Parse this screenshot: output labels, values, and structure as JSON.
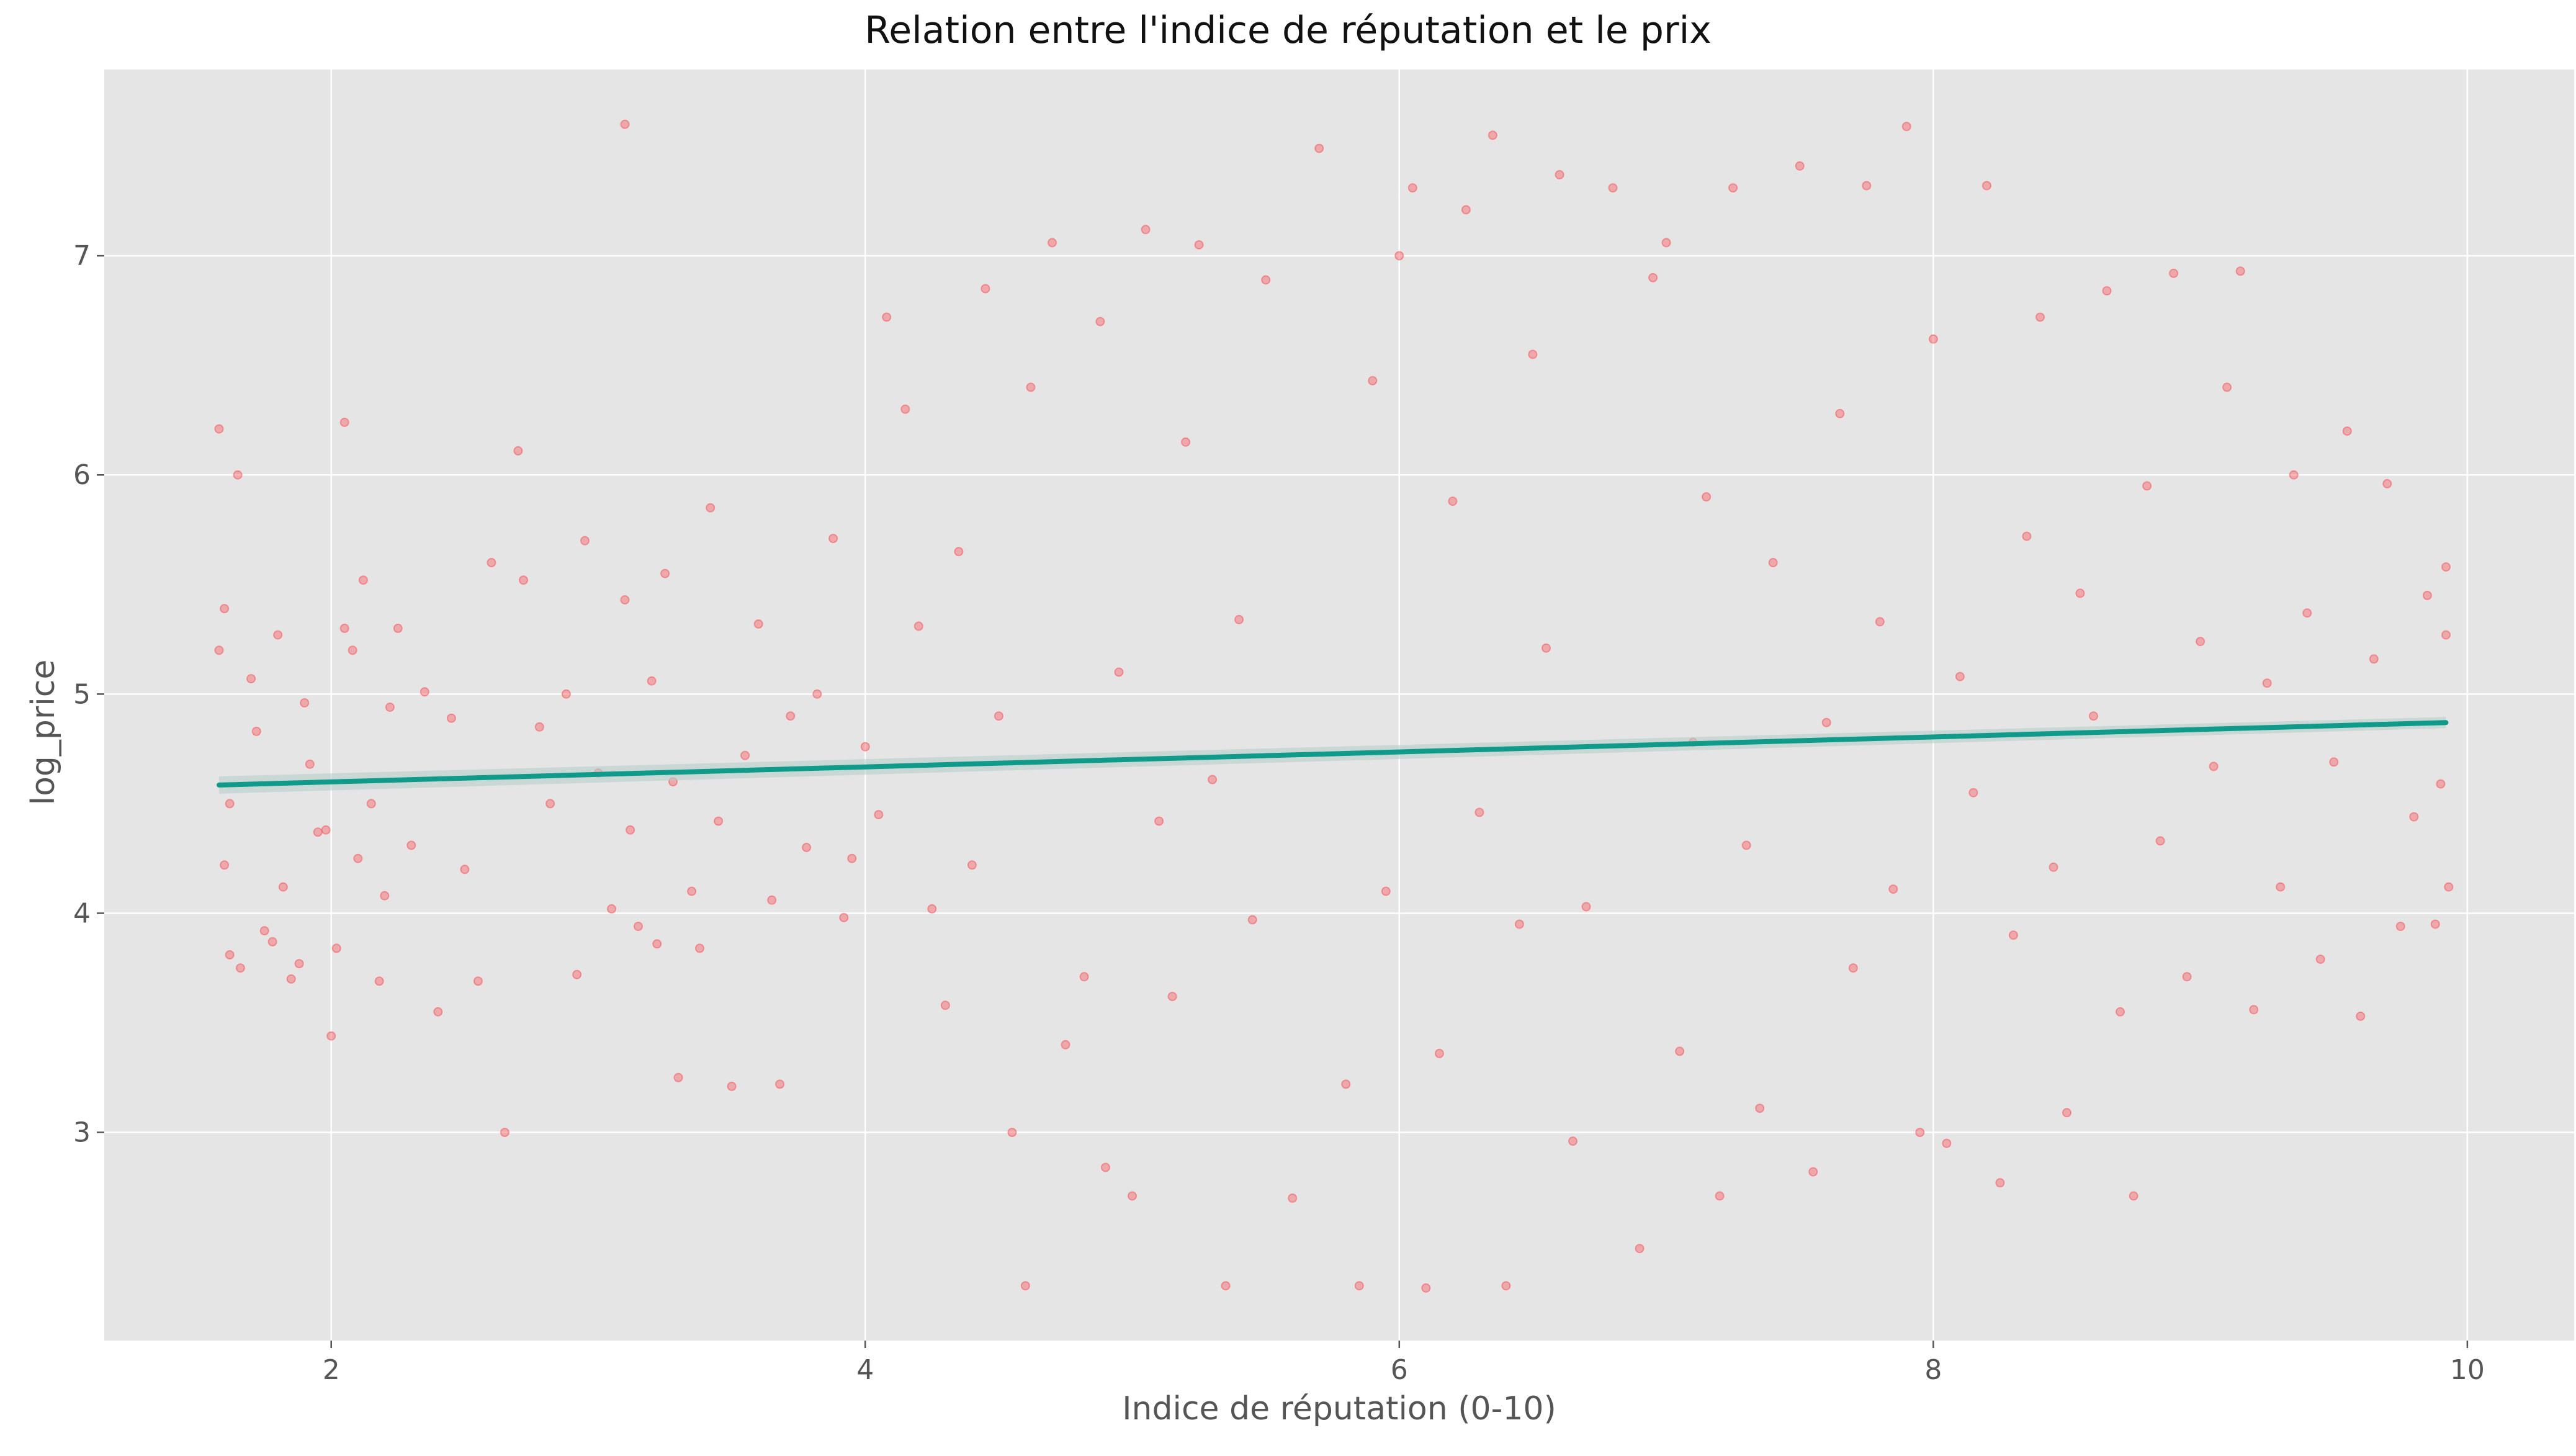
{
  "chart_data": {
    "type": "scatter",
    "title": "Relation entre l'indice de réputation et le prix",
    "xlabel": "Indice de réputation (0-10)",
    "ylabel": "log_price",
    "xlim": [
      1.15,
      10.4
    ],
    "ylim": [
      2.05,
      7.85
    ],
    "xticks": [
      2,
      4,
      6,
      8,
      10
    ],
    "yticks": [
      3,
      4,
      5,
      6,
      7
    ],
    "grid": true,
    "background": "#e5e5e5",
    "colors": {
      "points": "#f8545a",
      "fit_line": "#0f9a8a",
      "band": "#b8cfc9"
    },
    "regression": {
      "x": [
        1.58,
        9.92
      ],
      "y": [
        4.585,
        4.87
      ]
    },
    "series": [
      {
        "points": [
          [
            1.58,
            6.21
          ],
          [
            1.6,
            5.39
          ],
          [
            1.58,
            5.2
          ],
          [
            1.62,
            4.5
          ],
          [
            1.6,
            4.22
          ],
          [
            1.62,
            3.81
          ],
          [
            1.66,
            3.75
          ],
          [
            1.65,
            6.0
          ],
          [
            1.7,
            5.07
          ],
          [
            1.72,
            4.83
          ],
          [
            1.75,
            3.92
          ],
          [
            1.78,
            3.87
          ],
          [
            1.8,
            5.27
          ],
          [
            1.82,
            4.12
          ],
          [
            1.85,
            3.7
          ],
          [
            1.88,
            3.77
          ],
          [
            1.9,
            4.96
          ],
          [
            1.92,
            4.68
          ],
          [
            1.95,
            4.37
          ],
          [
            1.98,
            4.38
          ],
          [
            2.0,
            3.44
          ],
          [
            2.02,
            3.84
          ],
          [
            2.05,
            6.24
          ],
          [
            2.05,
            5.3
          ],
          [
            2.08,
            5.2
          ],
          [
            2.1,
            4.25
          ],
          [
            2.12,
            5.52
          ],
          [
            2.15,
            4.5
          ],
          [
            2.18,
            3.69
          ],
          [
            2.2,
            4.08
          ],
          [
            2.22,
            4.94
          ],
          [
            2.25,
            5.3
          ],
          [
            2.3,
            4.31
          ],
          [
            2.35,
            5.01
          ],
          [
            2.4,
            3.55
          ],
          [
            2.45,
            4.89
          ],
          [
            2.5,
            4.2
          ],
          [
            2.55,
            3.69
          ],
          [
            2.6,
            5.6
          ],
          [
            2.65,
            3.0
          ],
          [
            2.7,
            6.11
          ],
          [
            2.72,
            5.52
          ],
          [
            2.78,
            4.85
          ],
          [
            2.82,
            4.5
          ],
          [
            2.88,
            5.0
          ],
          [
            2.92,
            3.72
          ],
          [
            2.95,
            5.7
          ],
          [
            3.0,
            4.64
          ],
          [
            3.05,
            4.02
          ],
          [
            3.1,
            7.6
          ],
          [
            3.1,
            5.43
          ],
          [
            3.12,
            4.38
          ],
          [
            3.15,
            3.94
          ],
          [
            3.2,
            5.06
          ],
          [
            3.22,
            3.86
          ],
          [
            3.25,
            5.55
          ],
          [
            3.28,
            4.6
          ],
          [
            3.3,
            3.25
          ],
          [
            3.35,
            4.1
          ],
          [
            3.38,
            3.84
          ],
          [
            3.42,
            5.85
          ],
          [
            3.45,
            4.42
          ],
          [
            3.5,
            3.21
          ],
          [
            3.55,
            4.72
          ],
          [
            3.6,
            5.32
          ],
          [
            3.65,
            4.06
          ],
          [
            3.68,
            3.22
          ],
          [
            3.72,
            4.9
          ],
          [
            3.78,
            4.3
          ],
          [
            3.82,
            5.0
          ],
          [
            3.88,
            5.71
          ],
          [
            3.92,
            3.98
          ],
          [
            3.95,
            4.25
          ],
          [
            4.0,
            4.76
          ],
          [
            4.05,
            4.45
          ],
          [
            4.08,
            6.72
          ],
          [
            4.15,
            6.3
          ],
          [
            4.2,
            5.31
          ],
          [
            4.25,
            4.02
          ],
          [
            4.3,
            3.58
          ],
          [
            4.35,
            5.65
          ],
          [
            4.4,
            4.22
          ],
          [
            4.45,
            6.85
          ],
          [
            4.5,
            4.9
          ],
          [
            4.55,
            3.0
          ],
          [
            4.6,
            2.3
          ],
          [
            4.62,
            6.4
          ],
          [
            4.7,
            7.06
          ],
          [
            4.75,
            3.4
          ],
          [
            4.82,
            3.71
          ],
          [
            4.88,
            6.7
          ],
          [
            4.9,
            2.84
          ],
          [
            4.95,
            5.1
          ],
          [
            5.0,
            2.71
          ],
          [
            5.05,
            7.12
          ],
          [
            5.1,
            4.42
          ],
          [
            5.15,
            3.62
          ],
          [
            5.2,
            6.15
          ],
          [
            5.25,
            7.05
          ],
          [
            5.3,
            4.61
          ],
          [
            5.35,
            2.3
          ],
          [
            5.4,
            5.34
          ],
          [
            5.45,
            3.97
          ],
          [
            5.5,
            6.89
          ],
          [
            5.6,
            2.7
          ],
          [
            5.7,
            7.49
          ],
          [
            5.8,
            3.22
          ],
          [
            5.85,
            2.3
          ],
          [
            5.9,
            6.43
          ],
          [
            5.95,
            4.1
          ],
          [
            6.0,
            7.0
          ],
          [
            6.05,
            7.31
          ],
          [
            6.1,
            2.29
          ],
          [
            6.15,
            3.36
          ],
          [
            6.2,
            5.88
          ],
          [
            6.25,
            7.21
          ],
          [
            6.3,
            4.46
          ],
          [
            6.35,
            7.55
          ],
          [
            6.4,
            2.3
          ],
          [
            6.45,
            3.95
          ],
          [
            6.5,
            6.55
          ],
          [
            6.55,
            5.21
          ],
          [
            6.6,
            7.37
          ],
          [
            6.65,
            2.96
          ],
          [
            6.7,
            4.03
          ],
          [
            6.8,
            7.31
          ],
          [
            6.9,
            2.47
          ],
          [
            6.95,
            6.9
          ],
          [
            7.0,
            7.06
          ],
          [
            7.05,
            3.37
          ],
          [
            7.1,
            4.78
          ],
          [
            7.15,
            5.9
          ],
          [
            7.2,
            2.71
          ],
          [
            7.25,
            7.31
          ],
          [
            7.3,
            4.31
          ],
          [
            7.35,
            3.11
          ],
          [
            7.4,
            5.6
          ],
          [
            7.5,
            7.41
          ],
          [
            7.55,
            2.82
          ],
          [
            7.6,
            4.87
          ],
          [
            7.65,
            6.28
          ],
          [
            7.7,
            3.75
          ],
          [
            7.75,
            7.32
          ],
          [
            7.8,
            5.33
          ],
          [
            7.85,
            4.11
          ],
          [
            7.9,
            7.59
          ],
          [
            7.95,
            3.0
          ],
          [
            8.0,
            6.62
          ],
          [
            8.05,
            2.95
          ],
          [
            8.1,
            5.08
          ],
          [
            8.15,
            4.55
          ],
          [
            8.2,
            7.32
          ],
          [
            8.25,
            2.77
          ],
          [
            8.3,
            3.9
          ],
          [
            8.35,
            5.72
          ],
          [
            8.4,
            6.72
          ],
          [
            8.45,
            4.21
          ],
          [
            8.5,
            3.09
          ],
          [
            8.55,
            5.46
          ],
          [
            8.6,
            4.9
          ],
          [
            8.65,
            6.84
          ],
          [
            8.7,
            3.55
          ],
          [
            8.75,
            2.71
          ],
          [
            8.8,
            5.95
          ],
          [
            8.85,
            4.33
          ],
          [
            8.9,
            6.92
          ],
          [
            8.95,
            3.71
          ],
          [
            9.0,
            5.24
          ],
          [
            9.05,
            4.67
          ],
          [
            9.1,
            6.4
          ],
          [
            9.15,
            6.93
          ],
          [
            9.2,
            3.56
          ],
          [
            9.25,
            5.05
          ],
          [
            9.3,
            4.12
          ],
          [
            9.35,
            6.0
          ],
          [
            9.4,
            5.37
          ],
          [
            9.45,
            3.79
          ],
          [
            9.5,
            4.69
          ],
          [
            9.55,
            6.2
          ],
          [
            9.6,
            3.53
          ],
          [
            9.65,
            5.16
          ],
          [
            9.7,
            5.96
          ],
          [
            9.75,
            3.94
          ],
          [
            9.8,
            4.44
          ],
          [
            9.85,
            5.45
          ],
          [
            9.88,
            3.95
          ],
          [
            9.9,
            4.59
          ],
          [
            9.92,
            5.58
          ],
          [
            9.93,
            4.12
          ],
          [
            9.92,
            5.27
          ]
        ]
      }
    ]
  }
}
